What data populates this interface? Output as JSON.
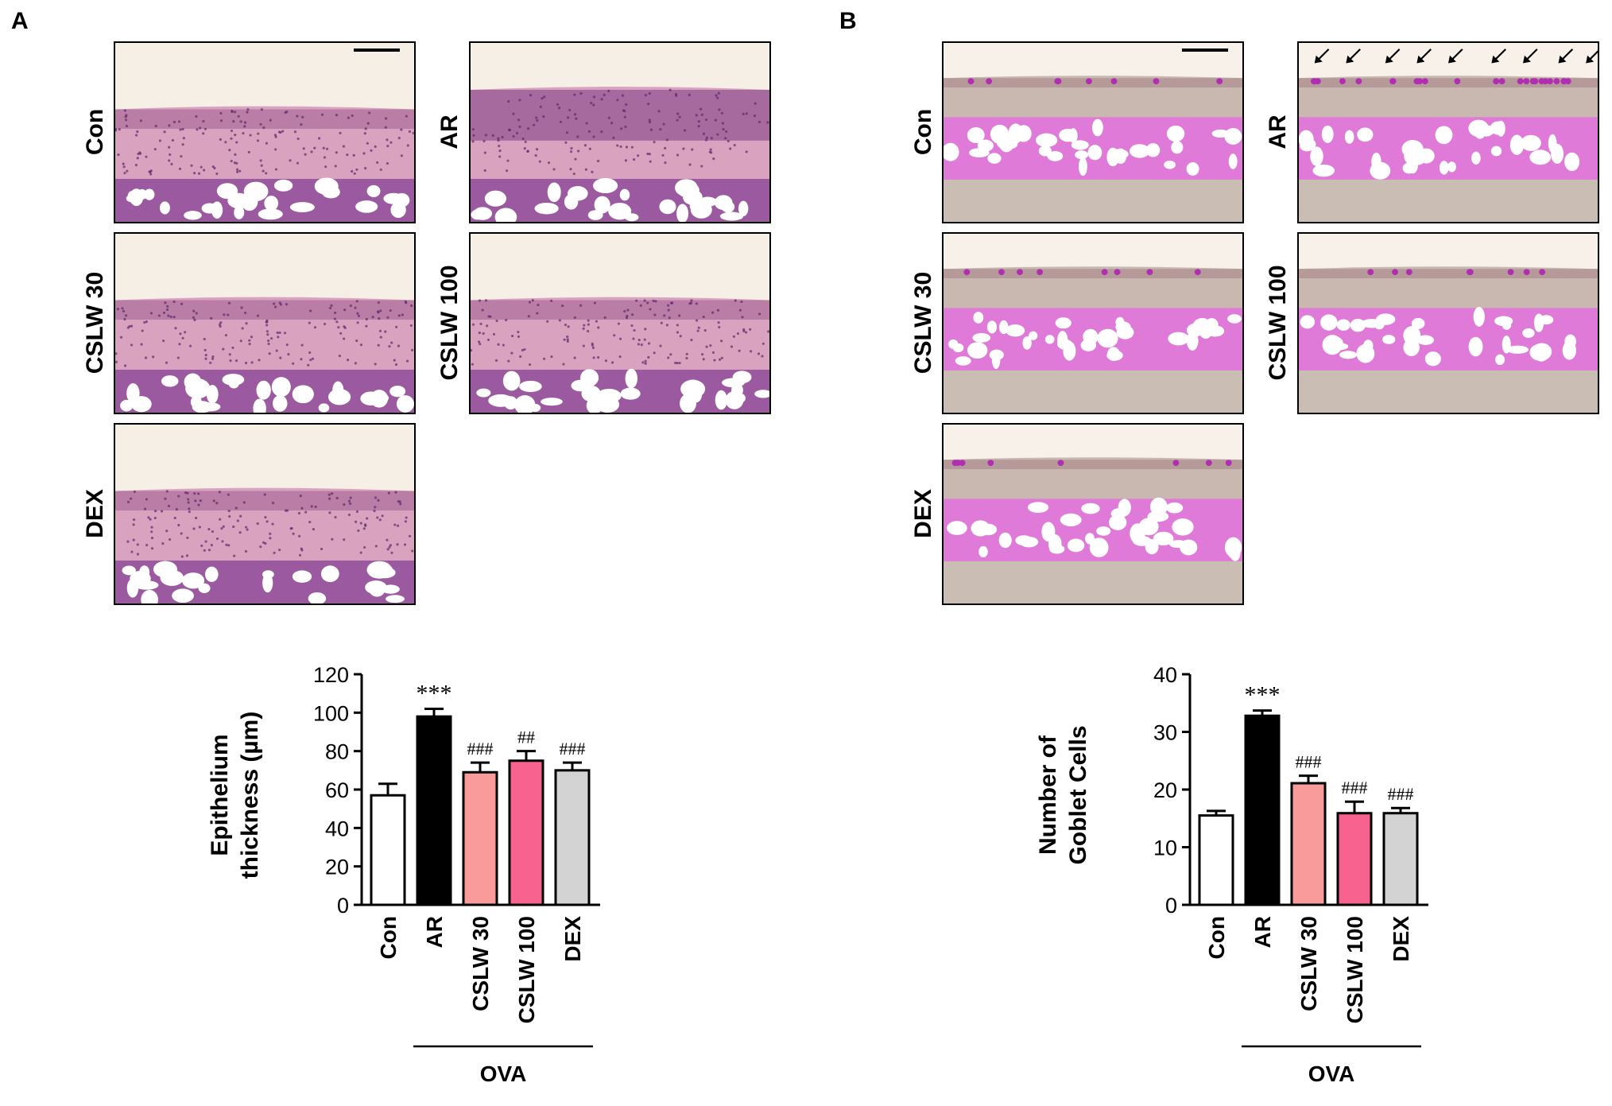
{
  "panels": {
    "A": {
      "letter": "A",
      "images": [
        {
          "label": "Con",
          "stain": "he",
          "thick": false
        },
        {
          "label": "AR",
          "stain": "he",
          "thick": true
        },
        {
          "label": "CSLW 30",
          "stain": "he",
          "thick": false
        },
        {
          "label": "CSLW 100",
          "stain": "he",
          "thick": false
        },
        {
          "label": "DEX",
          "stain": "he",
          "thick": false
        }
      ]
    },
    "B": {
      "letter": "B",
      "images": [
        {
          "label": "Con",
          "stain": "pas",
          "arrows": false
        },
        {
          "label": "AR",
          "stain": "pas",
          "arrows": true
        },
        {
          "label": "CSLW 30",
          "stain": "pas",
          "arrows": false
        },
        {
          "label": "CSLW 100",
          "stain": "pas",
          "arrows": false
        },
        {
          "label": "DEX",
          "stain": "pas",
          "arrows": false
        }
      ]
    }
  },
  "colors": {
    "he_background": "#f6efe6",
    "he_tissue": "#d9a3c0",
    "he_cartilage": "#9b5aa0",
    "pas_background": "#f7f1ea",
    "pas_tissue": "#c8b8b0",
    "pas_cartilage": "#e07ad8",
    "bar_con": "#ffffff",
    "bar_ar": "#000000",
    "bar_cslw30": "#fa9b9b",
    "bar_cslw100": "#f7628f",
    "bar_dex": "#d3d3d3"
  },
  "chart_data": [
    {
      "type": "bar",
      "title": "",
      "ylabel_lines": [
        "Epithelium",
        "thickness (µm)"
      ],
      "ylim": [
        0,
        120
      ],
      "yticks": [
        0,
        20,
        40,
        60,
        80,
        100,
        120
      ],
      "categories": [
        "Con",
        "AR",
        "CSLW 30",
        "CSLW 100",
        "DEX"
      ],
      "values": [
        57,
        98,
        69,
        75,
        70
      ],
      "errors": [
        6,
        4,
        5,
        5,
        4
      ],
      "annotations": [
        "",
        "***",
        "###",
        "##",
        "###"
      ],
      "group_label": "OVA",
      "group_span": [
        "AR",
        "DEX"
      ]
    },
    {
      "type": "bar",
      "title": "",
      "ylabel_lines": [
        "Number of",
        "Goblet Cells"
      ],
      "ylim": [
        0,
        40
      ],
      "yticks": [
        0,
        10,
        20,
        30,
        40
      ],
      "categories": [
        "Con",
        "AR",
        "CSLW 30",
        "CSLW 100",
        "DEX"
      ],
      "values": [
        15.5,
        32.8,
        21.1,
        15.9,
        15.9
      ],
      "errors": [
        0.8,
        0.9,
        1.3,
        2.0,
        0.9
      ],
      "annotations": [
        "",
        "***",
        "###",
        "###",
        "###"
      ],
      "group_label": "OVA",
      "group_span": [
        "AR",
        "DEX"
      ]
    }
  ]
}
